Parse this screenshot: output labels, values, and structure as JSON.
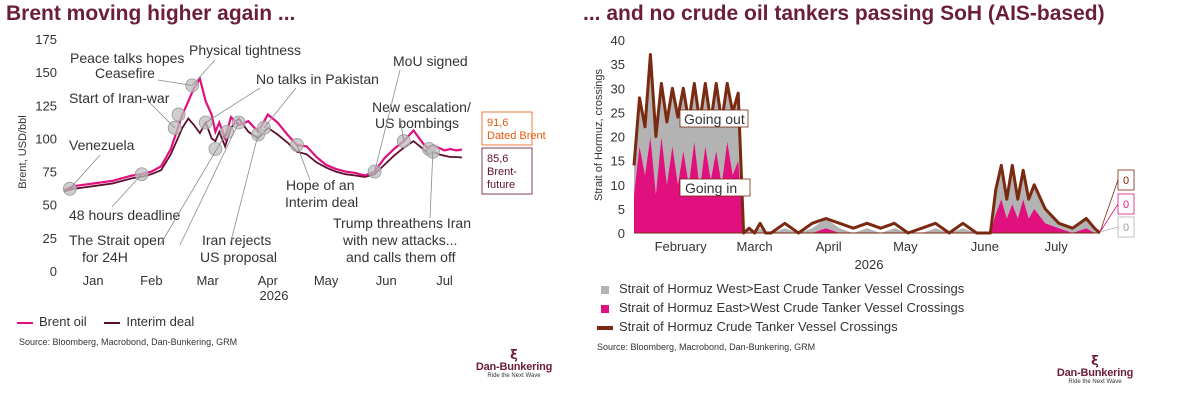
{
  "left_chart": {
    "title": "Brent moving higher again ...",
    "ylabel": "Brent, USD/bbl",
    "year": "2026",
    "yticks": [
      "0",
      "25",
      "50",
      "75",
      "100",
      "125",
      "150",
      "175"
    ],
    "xticks": [
      "Jan",
      "Feb",
      "Mar",
      "Apr",
      "May",
      "Jun",
      "Jul"
    ],
    "legend": [
      {
        "name": "Brent oil",
        "color": "#e0117f"
      },
      {
        "name": "Interim deal",
        "color": "#5e0f2e"
      }
    ],
    "source": "Source: Bloomberg, Macrobond, Dan-Bunkering, GRM",
    "annotations": [
      "Venezuela",
      "48 hours deadline",
      "Start of Iran-war",
      "Peace talks hopes",
      "Ceasefire",
      "Physical tightness",
      "No talks in Pakistan",
      "The Strait open",
      "for 24H",
      "Iran rejects",
      "US proposal",
      "Hope of an",
      "Interim deal",
      "MoU signed",
      "New escalation/",
      "US bombings",
      "Trump threathens Iran",
      "with new attacks...",
      "and calls them off"
    ],
    "end_labels": [
      {
        "value": "91,6",
        "name": "Dated Brent",
        "color": "#e8590c"
      },
      {
        "value": "85,6",
        "name_lines": [
          "Brent-",
          "future"
        ],
        "color": "#5e0f2e"
      }
    ]
  },
  "right_chart": {
    "title": "... and no crude oil tankers passing SoH (AIS-based)",
    "ylabel": "Strait of Hormuz, crossings",
    "year": "2026",
    "yticks": [
      "0",
      "5",
      "10",
      "15",
      "20",
      "25",
      "30",
      "35",
      "40"
    ],
    "xticks": [
      "February",
      "March",
      "April",
      "May",
      "June",
      "July"
    ],
    "area_labels": [
      "Going out",
      "Going in"
    ],
    "end_labels": [
      "0",
      "0",
      "0"
    ],
    "legend": [
      {
        "name": "Strait of Hormuz West>East Crude Tanker Vessel Crossings",
        "color": "#b3b3b3"
      },
      {
        "name": "Strait of Hormuz East>West Crude Tanker Vessel Crossings",
        "color": "#e0117f"
      },
      {
        "name": "Strait of Hormuz Crude Tanker Vessel Crossings",
        "color": "#7a2a10"
      }
    ],
    "source": "Source: Bloomberg, Macrobond, Dan-Bunkering, GRM"
  },
  "logo": {
    "name": "Dan-Bunkering",
    "tagline": "Ride the Next Wave"
  },
  "chart_data": [
    {
      "type": "line",
      "title": "Brent moving higher again ...",
      "ylabel": "Brent, USD/bbl",
      "xlabel": "2026",
      "ylim": [
        0,
        175
      ],
      "x_unit": "days since 2026-01-01",
      "series": [
        {
          "name": "Brent oil",
          "x": [
            0,
            5,
            10,
            15,
            20,
            25,
            30,
            35,
            40,
            45,
            50,
            55,
            58,
            61,
            64,
            67,
            70,
            73,
            76,
            78,
            80,
            83,
            86,
            90,
            95,
            100,
            105,
            110,
            115,
            120,
            125,
            130,
            135,
            140,
            145,
            150,
            155,
            160,
            165,
            170,
            175,
            180,
            185,
            188,
            190,
            193,
            196,
            199,
            202,
            205
          ],
          "y": [
            61,
            64,
            65,
            66,
            67,
            68,
            70,
            72,
            73,
            75,
            79,
            92,
            105,
            118,
            128,
            138,
            145,
            128,
            118,
            105,
            112,
            100,
            116,
            110,
            113,
            105,
            118,
            112,
            103,
            95,
            94,
            86,
            80,
            77,
            75,
            74,
            72,
            75,
            85,
            92,
            98,
            106,
            96,
            92,
            95,
            93,
            91,
            92,
            91,
            91.6
          ]
        },
        {
          "name": "Interim deal",
          "x": [
            0,
            5,
            10,
            15,
            20,
            25,
            30,
            35,
            40,
            45,
            50,
            55,
            58,
            61,
            64,
            67,
            70,
            73,
            76,
            78,
            80,
            83,
            86,
            90,
            95,
            100,
            105,
            110,
            115,
            120,
            125,
            130,
            135,
            140,
            145,
            150,
            155,
            160,
            165,
            170,
            175,
            180,
            185,
            188,
            190,
            193,
            196,
            199,
            202,
            205
          ],
          "y": [
            60,
            62,
            63,
            64,
            65,
            66,
            68,
            70,
            71,
            73,
            76,
            88,
            98,
            108,
            115,
            110,
            104,
            112,
            100,
            98,
            105,
            94,
            108,
            115,
            105,
            100,
            108,
            103,
            97,
            90,
            88,
            82,
            78,
            75,
            73,
            72,
            71,
            73,
            80,
            87,
            93,
            98,
            92,
            88,
            90,
            88,
            87,
            86,
            86,
            85.6
          ]
        }
      ]
    },
    {
      "type": "area",
      "title": "... and no crude oil tankers passing SoH (AIS-based)",
      "ylabel": "Strait of Hormuz, crossings",
      "xlabel": "2026",
      "ylim": [
        0,
        40
      ],
      "x_unit": "days since 2026-01-25",
      "series": [
        {
          "name": "Strait of Hormuz East>West Crude Tanker Vessel Crossings",
          "x": [
            0,
            2,
            4,
            6,
            8,
            10,
            12,
            14,
            16,
            18,
            20,
            22,
            24,
            26,
            28,
            30,
            32,
            34,
            36,
            38,
            40,
            42,
            44,
            46,
            48,
            50,
            55,
            60,
            65,
            70,
            75,
            80,
            85,
            90,
            95,
            100,
            105,
            110,
            115,
            120,
            125,
            130,
            132,
            134,
            136,
            138,
            140,
            142,
            144,
            146,
            150,
            155,
            160,
            165,
            168,
            170
          ],
          "y": [
            8,
            18,
            12,
            20,
            8,
            20,
            10,
            18,
            10,
            17,
            10,
            19,
            9,
            18,
            11,
            17,
            10,
            19,
            12,
            15,
            0,
            0,
            0,
            0,
            0,
            0,
            0,
            0,
            0,
            1,
            0,
            0,
            0,
            0,
            0,
            0,
            0,
            0,
            0,
            0,
            0,
            0,
            4,
            7,
            3,
            6,
            3,
            7,
            3,
            5,
            2,
            1,
            0,
            1,
            0,
            0
          ]
        },
        {
          "name": "Strait of Hormuz West>East Crude Tanker Vessel Crossings",
          "x": [
            0,
            2,
            4,
            6,
            8,
            10,
            12,
            14,
            16,
            18,
            20,
            22,
            24,
            26,
            28,
            30,
            32,
            34,
            36,
            38,
            40,
            42,
            44,
            46,
            48,
            50,
            55,
            60,
            65,
            70,
            75,
            80,
            85,
            90,
            95,
            100,
            105,
            110,
            115,
            120,
            125,
            130,
            132,
            134,
            136,
            138,
            140,
            142,
            144,
            146,
            150,
            155,
            160,
            165,
            168,
            170
          ],
          "y": [
            6,
            10,
            10,
            13,
            12,
            11,
            13,
            12,
            14,
            13,
            13,
            12,
            14,
            13,
            12,
            14,
            13,
            12,
            13,
            14,
            0,
            1,
            0,
            1,
            0,
            0,
            1,
            0,
            1,
            2,
            1,
            0,
            1,
            0,
            1,
            0,
            0,
            1,
            0,
            1,
            0,
            0,
            5,
            7,
            4,
            8,
            4,
            6,
            4,
            5,
            3,
            1,
            1,
            2,
            1,
            0
          ]
        },
        {
          "name": "Strait of Hormuz Crude Tanker Vessel Crossings",
          "x": [
            0,
            2,
            4,
            6,
            8,
            10,
            12,
            14,
            16,
            18,
            20,
            22,
            24,
            26,
            28,
            30,
            32,
            34,
            36,
            38,
            40,
            42,
            44,
            46,
            48,
            50,
            55,
            60,
            65,
            70,
            75,
            80,
            85,
            90,
            95,
            100,
            105,
            110,
            115,
            120,
            125,
            130,
            132,
            134,
            136,
            138,
            140,
            142,
            144,
            146,
            150,
            155,
            160,
            165,
            168,
            170
          ],
          "y": [
            14,
            28,
            22,
            37,
            20,
            31,
            23,
            30,
            24,
            30,
            23,
            31,
            23,
            31,
            23,
            31,
            23,
            31,
            25,
            29,
            0,
            1,
            0,
            2,
            0,
            0,
            2,
            0,
            2,
            3,
            2,
            1,
            2,
            1,
            2,
            0,
            1,
            2,
            0,
            2,
            0,
            0,
            9,
            14,
            7,
            14,
            7,
            13,
            7,
            10,
            5,
            2,
            1,
            3,
            1,
            0
          ]
        }
      ]
    }
  ]
}
